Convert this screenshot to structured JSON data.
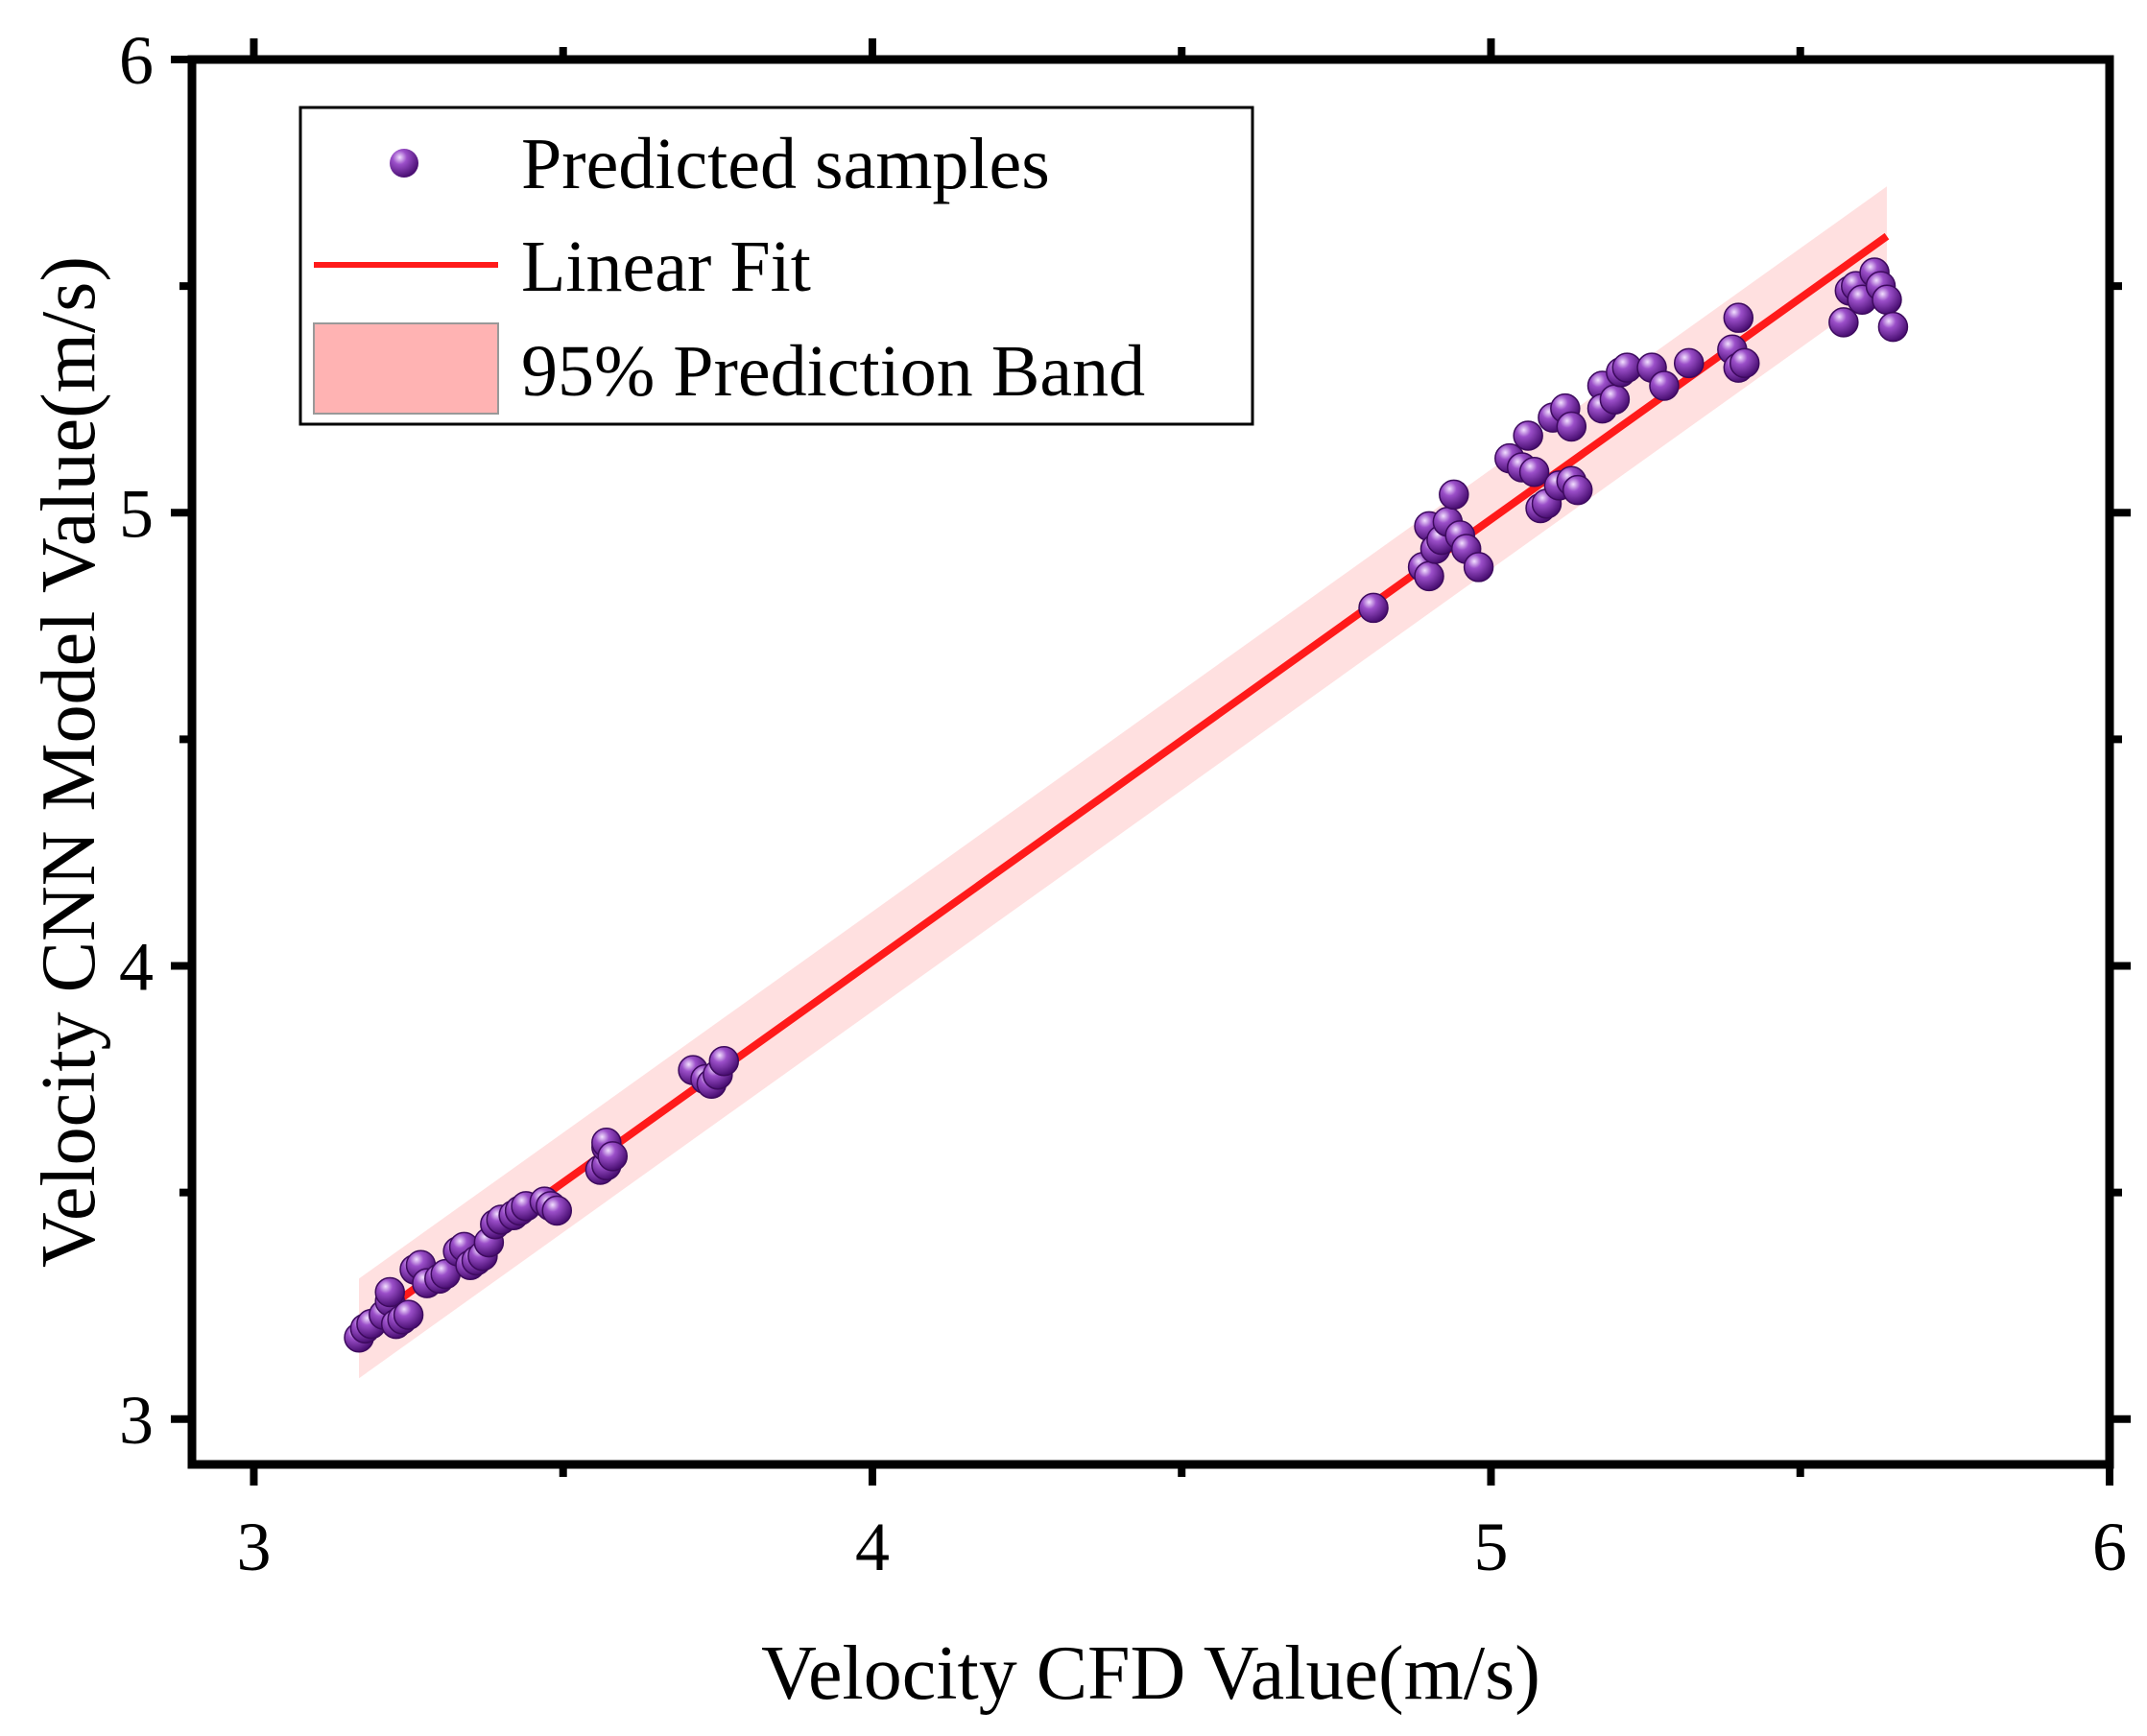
{
  "colors": {
    "fit_line": "#ff1a1a",
    "band_fill": "#ffd6d6",
    "legend_band_fill": "#ffb3b3",
    "point_fill": "#6a1b9a",
    "point_highlight": "#d9b3ff",
    "axis": "#000000"
  },
  "chart_data": {
    "type": "scatter",
    "title": "",
    "xlabel": "Velocity CFD Value(m/s)",
    "ylabel": "Velocity CNN Model Value(m/s)",
    "xlim": [
      2.9,
      6.0
    ],
    "ylim": [
      2.9,
      6.0
    ],
    "xticks": [
      3,
      4,
      5,
      6
    ],
    "yticks": [
      3,
      4,
      5,
      6
    ],
    "xtick_labels": [
      "3",
      "4",
      "5",
      "6"
    ],
    "ytick_labels": [
      "3",
      "4",
      "5",
      "6"
    ],
    "grid": false,
    "legend_position": "top-left",
    "legend": {
      "samples_label": "Predicted samples",
      "fit_label": "Linear Fit",
      "band_label": "95% Prediction Band"
    },
    "linear_fit": {
      "x_start": 3.17,
      "y_start": 3.2,
      "x_end": 5.64,
      "y_end": 5.61
    },
    "prediction_band": {
      "half_width": 0.11,
      "x_start": 3.17,
      "x_end": 5.64
    },
    "series": [
      {
        "name": "Predicted samples",
        "points": [
          [
            3.17,
            3.18
          ],
          [
            3.18,
            3.2
          ],
          [
            3.19,
            3.21
          ],
          [
            3.21,
            3.23
          ],
          [
            3.22,
            3.26
          ],
          [
            3.22,
            3.28
          ],
          [
            3.23,
            3.21
          ],
          [
            3.24,
            3.22
          ],
          [
            3.25,
            3.23
          ],
          [
            3.26,
            3.33
          ],
          [
            3.27,
            3.34
          ],
          [
            3.28,
            3.3
          ],
          [
            3.3,
            3.31
          ],
          [
            3.31,
            3.32
          ],
          [
            3.33,
            3.37
          ],
          [
            3.34,
            3.38
          ],
          [
            3.35,
            3.34
          ],
          [
            3.36,
            3.35
          ],
          [
            3.37,
            3.36
          ],
          [
            3.38,
            3.39
          ],
          [
            3.39,
            3.43
          ],
          [
            3.4,
            3.44
          ],
          [
            3.42,
            3.45
          ],
          [
            3.43,
            3.46
          ],
          [
            3.44,
            3.47
          ],
          [
            3.47,
            3.48
          ],
          [
            3.48,
            3.47
          ],
          [
            3.49,
            3.46
          ],
          [
            3.56,
            3.55
          ],
          [
            3.57,
            3.56
          ],
          [
            3.57,
            3.6
          ],
          [
            3.57,
            3.61
          ],
          [
            3.58,
            3.58
          ],
          [
            3.71,
            3.77
          ],
          [
            3.73,
            3.75
          ],
          [
            3.74,
            3.74
          ],
          [
            3.75,
            3.76
          ],
          [
            3.76,
            3.79
          ],
          [
            4.81,
            4.79
          ],
          [
            4.89,
            4.88
          ],
          [
            4.9,
            4.97
          ],
          [
            4.9,
            4.86
          ],
          [
            4.91,
            4.92
          ],
          [
            4.92,
            4.94
          ],
          [
            4.93,
            4.98
          ],
          [
            4.94,
            5.04
          ],
          [
            4.95,
            4.95
          ],
          [
            4.96,
            4.92
          ],
          [
            4.98,
            4.88
          ],
          [
            5.03,
            5.12
          ],
          [
            5.05,
            5.1
          ],
          [
            5.06,
            5.17
          ],
          [
            5.07,
            5.09
          ],
          [
            5.08,
            5.01
          ],
          [
            5.09,
            5.02
          ],
          [
            5.1,
            5.21
          ],
          [
            5.11,
            5.06
          ],
          [
            5.12,
            5.23
          ],
          [
            5.13,
            5.19
          ],
          [
            5.13,
            5.07
          ],
          [
            5.14,
            5.05
          ],
          [
            5.18,
            5.28
          ],
          [
            5.18,
            5.23
          ],
          [
            5.2,
            5.25
          ],
          [
            5.21,
            5.31
          ],
          [
            5.22,
            5.32
          ],
          [
            5.26,
            5.32
          ],
          [
            5.28,
            5.28
          ],
          [
            5.32,
            5.33
          ],
          [
            5.39,
            5.36
          ],
          [
            5.4,
            5.43
          ],
          [
            5.4,
            5.32
          ],
          [
            5.41,
            5.33
          ],
          [
            5.57,
            5.42
          ],
          [
            5.58,
            5.49
          ],
          [
            5.59,
            5.5
          ],
          [
            5.6,
            5.47
          ],
          [
            5.62,
            5.53
          ],
          [
            5.63,
            5.5
          ],
          [
            5.64,
            5.47
          ],
          [
            5.65,
            5.41
          ]
        ]
      }
    ]
  }
}
